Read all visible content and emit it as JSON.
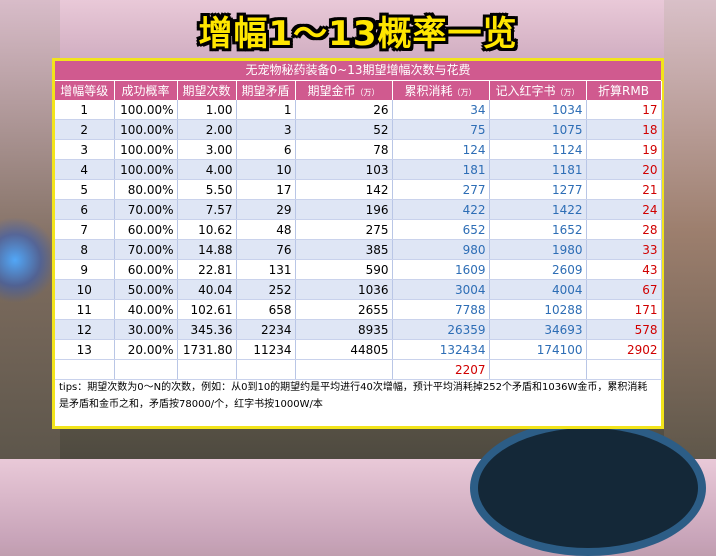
{
  "title": "增幅1～13概率一览",
  "table_caption": "无宠物秘药装备0~13期望增幅次数与花费",
  "headers": [
    {
      "label": "增幅等级",
      "unit": ""
    },
    {
      "label": "成功概率",
      "unit": ""
    },
    {
      "label": "期望次数",
      "unit": ""
    },
    {
      "label": "期望矛盾",
      "unit": ""
    },
    {
      "label": "期望金币",
      "unit": "（万）"
    },
    {
      "label": "累积消耗",
      "unit": "（万）"
    },
    {
      "label": "记入红字书",
      "unit": "（万）"
    },
    {
      "label": "折算RMB",
      "unit": ""
    }
  ],
  "rows": [
    [
      "1",
      "100.00%",
      "1.00",
      "1",
      "26",
      "34",
      "1034",
      "17"
    ],
    [
      "2",
      "100.00%",
      "2.00",
      "3",
      "52",
      "75",
      "1075",
      "18"
    ],
    [
      "3",
      "100.00%",
      "3.00",
      "6",
      "78",
      "124",
      "1124",
      "19"
    ],
    [
      "4",
      "100.00%",
      "4.00",
      "10",
      "103",
      "181",
      "1181",
      "20"
    ],
    [
      "5",
      "80.00%",
      "5.50",
      "17",
      "142",
      "277",
      "1277",
      "21"
    ],
    [
      "6",
      "70.00%",
      "7.57",
      "29",
      "196",
      "422",
      "1422",
      "24"
    ],
    [
      "7",
      "60.00%",
      "10.62",
      "48",
      "275",
      "652",
      "1652",
      "28"
    ],
    [
      "8",
      "70.00%",
      "14.88",
      "76",
      "385",
      "980",
      "1980",
      "33"
    ],
    [
      "9",
      "60.00%",
      "22.81",
      "131",
      "590",
      "1609",
      "2609",
      "43"
    ],
    [
      "10",
      "50.00%",
      "40.04",
      "252",
      "1036",
      "3004",
      "4004",
      "67"
    ],
    [
      "11",
      "40.00%",
      "102.61",
      "658",
      "2655",
      "7788",
      "10288",
      "171"
    ],
    [
      "12",
      "30.00%",
      "345.36",
      "2234",
      "8935",
      "26359",
      "34693",
      "578"
    ],
    [
      "13",
      "20.00%",
      "1731.80",
      "11234",
      "44805",
      "132434",
      "174100",
      "2902"
    ]
  ],
  "total_rmb": "2207",
  "tips": "tips：期望次数为0～N的次数，例如：从0到10的期望约是平均进行40次增幅，预计平均消耗掉252个矛盾和1036W金币，累积消耗是矛盾和金币之和，矛盾按78000/个，红字书按1000W/本",
  "colors": {
    "header_bg": "#d05a8f",
    "title_yellow": "#ffe600",
    "blue_text": "#2d6db5",
    "red_text": "#d00000",
    "row_alt_bg": "#dfe6f5"
  }
}
